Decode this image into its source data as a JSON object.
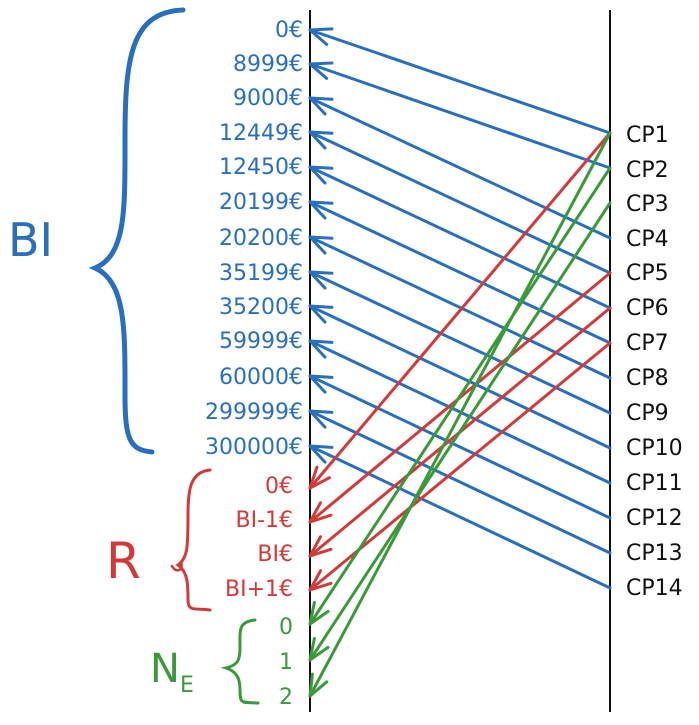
{
  "colors": {
    "blue": "#2a6fbd",
    "red": "#d23a3a",
    "green": "#3a9a3a",
    "black": "#111111"
  },
  "groups": {
    "bi": "BI",
    "r": "R",
    "ne_main": "N",
    "ne_sub": "E"
  },
  "left_labels": {
    "bi_values": [
      "0€",
      "8999€",
      "9000€",
      "12449€",
      "12450€",
      "20199€",
      "20200€",
      "35199€",
      "35200€",
      "59999€",
      "60000€",
      "299999€",
      "300000€"
    ],
    "r_values": [
      "0€",
      "BI-1€",
      "BI€",
      "BI+1€"
    ],
    "ne_values": [
      "0",
      "1",
      "2"
    ]
  },
  "right_labels": [
    "CP1",
    "CP2",
    "CP3",
    "CP4",
    "CP5",
    "CP6",
    "CP7",
    "CP8",
    "CP9",
    "CP10",
    "CP11",
    "CP12",
    "CP13",
    "CP14"
  ],
  "connections": [
    {
      "from": "CP1",
      "to": "bi.0",
      "color": "blue"
    },
    {
      "from": "CP2",
      "to": "bi.1",
      "color": "blue"
    },
    {
      "from": "CP4",
      "to": "bi.2",
      "color": "blue"
    },
    {
      "from": "CP5",
      "to": "bi.3",
      "color": "blue"
    },
    {
      "from": "CP6",
      "to": "bi.4",
      "color": "blue"
    },
    {
      "from": "CP7",
      "to": "bi.5",
      "color": "blue"
    },
    {
      "from": "CP8",
      "to": "bi.6",
      "color": "blue"
    },
    {
      "from": "CP9",
      "to": "bi.7",
      "color": "blue"
    },
    {
      "from": "CP10",
      "to": "bi.8",
      "color": "blue"
    },
    {
      "from": "CP11",
      "to": "bi.9",
      "color": "blue"
    },
    {
      "from": "CP12",
      "to": "bi.10",
      "color": "blue"
    },
    {
      "from": "CP13",
      "to": "bi.11",
      "color": "blue"
    },
    {
      "from": "CP14",
      "to": "bi.12",
      "color": "blue"
    },
    {
      "from": "CP1",
      "to": "r.0",
      "color": "red"
    },
    {
      "from": "CP5",
      "to": "r.1",
      "color": "red"
    },
    {
      "from": "CP6",
      "to": "r.2",
      "color": "red"
    },
    {
      "from": "CP7",
      "to": "r.3",
      "color": "red"
    },
    {
      "from": "CP2",
      "to": "ne.0",
      "color": "green"
    },
    {
      "from": "CP3",
      "to": "ne.1",
      "color": "green"
    },
    {
      "from": "CP1",
      "to": "ne.2",
      "color": "green"
    }
  ]
}
